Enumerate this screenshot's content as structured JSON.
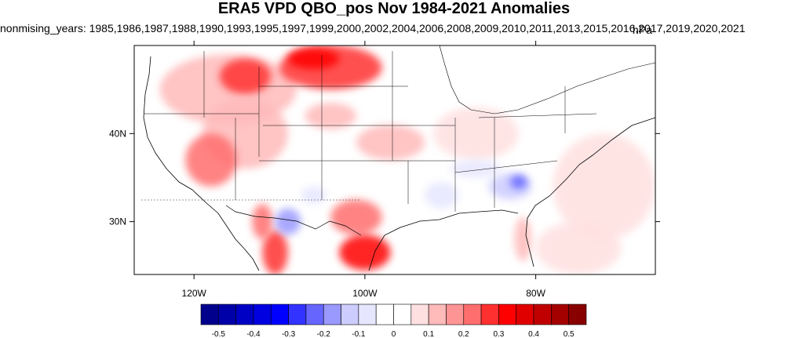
{
  "title": "ERA5 VPD QBO_pos Nov 1984-2021 Anomalies",
  "subtitle": "nonmising_years: 1985,1986,1987,1988,1990,1993,1995,1997,1999,2000,2002,2004,2006,2008,2009,2010,2011,2013,2015,2016,2017,2019,2020,2021",
  "units": "hPa",
  "map": {
    "lon_range": [
      -127,
      -66
    ],
    "lat_range": [
      24,
      50
    ],
    "lat_ticks": [
      {
        "value": 40,
        "label": "40N"
      },
      {
        "value": 30,
        "label": "30N"
      }
    ],
    "lon_ticks": [
      {
        "value": -120,
        "label": "120W"
      },
      {
        "value": -100,
        "label": "100W"
      },
      {
        "value": -80,
        "label": "80W"
      }
    ]
  },
  "colorbar": {
    "colors": [
      "#00008c",
      "#0000a8",
      "#0000c4",
      "#0000e0",
      "#0000ff",
      "#3333ff",
      "#6666ff",
      "#9999ff",
      "#ccccff",
      "#e6e6ff",
      "#ffffff",
      "#ffffff",
      "#ffe0e0",
      "#ffbaba",
      "#ff9494",
      "#ff6e6e",
      "#ff3030",
      "#ff0000",
      "#e00000",
      "#c00000",
      "#a40000",
      "#880000"
    ],
    "labels": [
      "-0.5",
      "-0.4",
      "-0.3",
      "-0.2",
      "-0.1",
      "0",
      "0.1",
      "0.2",
      "0.3",
      "0.4",
      "0.5"
    ]
  },
  "anomaly_regions": [
    {
      "lon": -116,
      "lat": 45,
      "rx": 8,
      "ry": 4,
      "value": 0.15
    },
    {
      "lon": -114,
      "lat": 46.5,
      "rx": 3,
      "ry": 2,
      "value": 0.25
    },
    {
      "lon": -104,
      "lat": 47.5,
      "rx": 6,
      "ry": 2.5,
      "value": 0.25
    },
    {
      "lon": -106,
      "lat": 48.5,
      "rx": 3,
      "ry": 1.2,
      "value": 0.35
    },
    {
      "lon": -114,
      "lat": 40,
      "rx": 5,
      "ry": 4,
      "value": 0.15
    },
    {
      "lon": -118,
      "lat": 37,
      "rx": 3,
      "ry": 3,
      "value": 0.2
    },
    {
      "lon": -97,
      "lat": 39,
      "rx": 4,
      "ry": 2,
      "value": 0.15
    },
    {
      "lon": -104,
      "lat": 42,
      "rx": 3,
      "ry": 1.5,
      "value": 0.1
    },
    {
      "lon": -87,
      "lat": 40,
      "rx": 5,
      "ry": 3,
      "value": 0.08
    },
    {
      "lon": -110.5,
      "lat": 26.5,
      "rx": 1.5,
      "ry": 2.5,
      "value": 0.3
    },
    {
      "lon": -112,
      "lat": 30,
      "rx": 1.2,
      "ry": 2,
      "value": 0.2
    },
    {
      "lon": -101,
      "lat": 30.5,
      "rx": 3,
      "ry": 2,
      "value": 0.2
    },
    {
      "lon": -100,
      "lat": 26.5,
      "rx": 3,
      "ry": 2,
      "value": 0.35
    },
    {
      "lon": -72,
      "lat": 34,
      "rx": 6,
      "ry": 6,
      "value": 0.08
    },
    {
      "lon": -81.5,
      "lat": 28,
      "rx": 1,
      "ry": 2.5,
      "value": 0.15
    },
    {
      "lon": -75,
      "lat": 27,
      "rx": 5,
      "ry": 3,
      "value": 0.07
    },
    {
      "lon": -83,
      "lat": 34,
      "rx": 2.5,
      "ry": 1.5,
      "value": -0.15
    },
    {
      "lon": -82,
      "lat": 34.5,
      "rx": 1,
      "ry": 0.8,
      "value": -0.25
    },
    {
      "lon": -91,
      "lat": 33,
      "rx": 2,
      "ry": 1.5,
      "value": -0.08
    },
    {
      "lon": -109,
      "lat": 30,
      "rx": 1.5,
      "ry": 1.5,
      "value": -0.2
    },
    {
      "lon": -106,
      "lat": 33,
      "rx": 1.5,
      "ry": 1,
      "value": -0.07
    },
    {
      "lon": -87,
      "lat": 36,
      "rx": 3,
      "ry": 1,
      "value": -0.07
    }
  ]
}
